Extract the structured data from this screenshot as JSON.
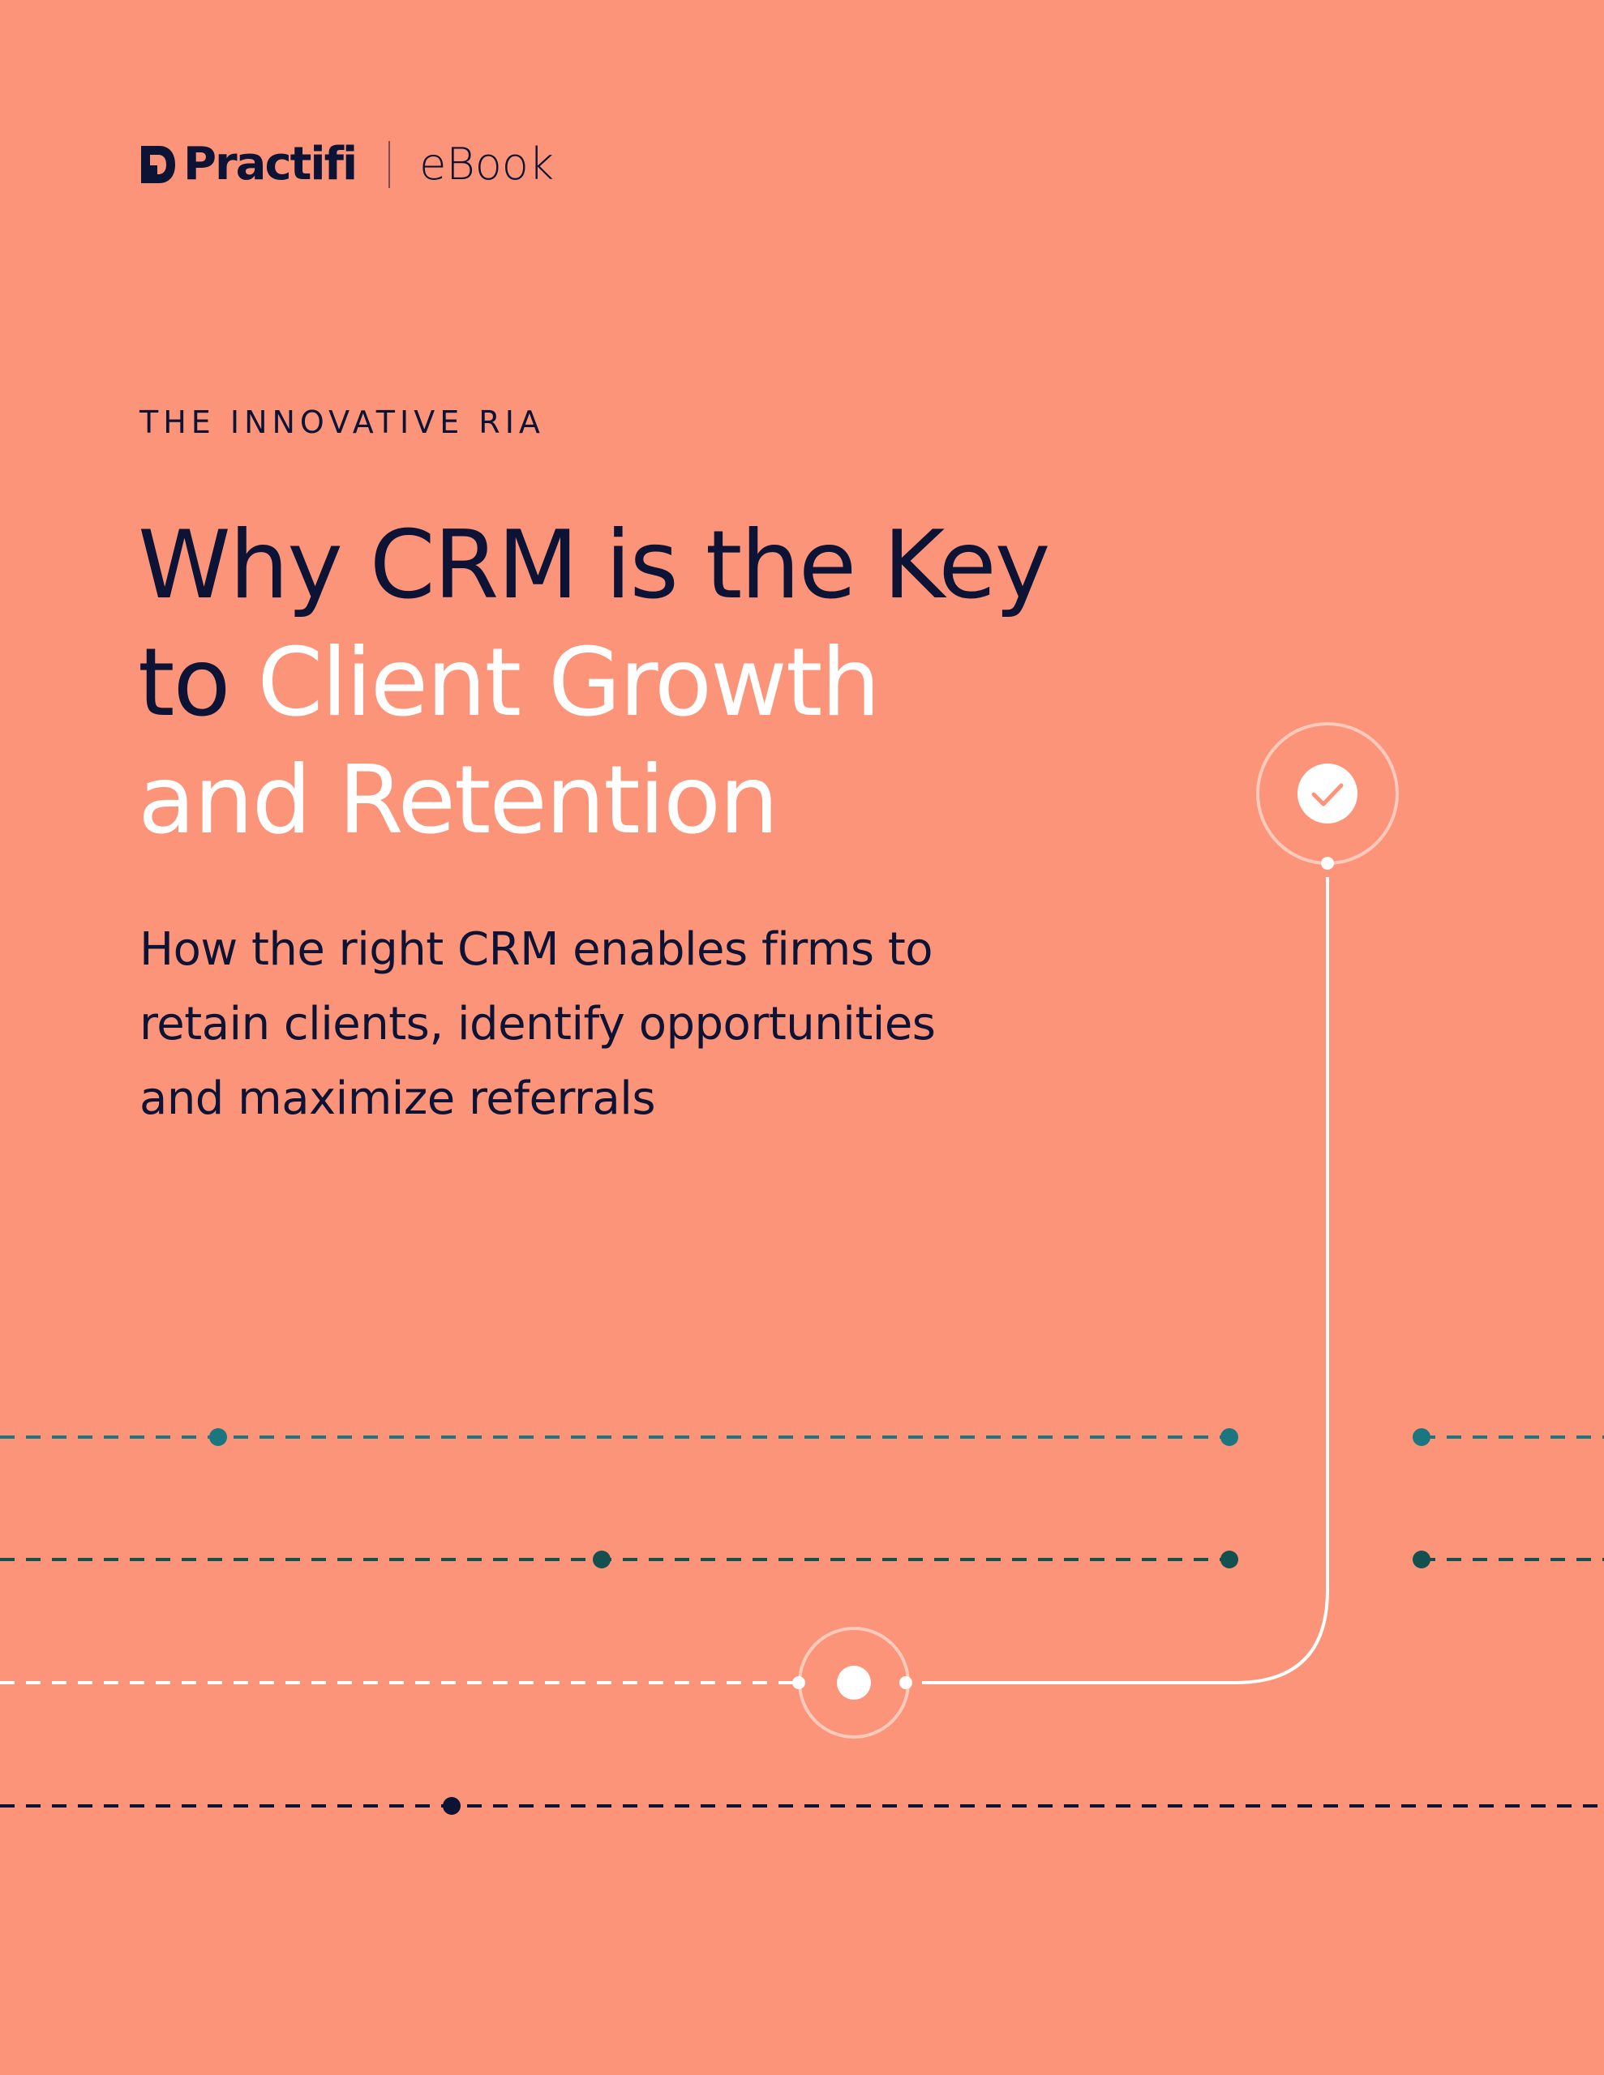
{
  "colors": {
    "background": "#FC9479",
    "navy": "#0D1335",
    "white": "#FFFFFF",
    "teal": "#1C7680",
    "dark_teal": "#14504F",
    "accent_check": "#FC9479"
  },
  "header": {
    "logo_text": "Practifi",
    "doc_type": "eBook"
  },
  "cover": {
    "eyebrow": "THE INNOVATIVE RIA",
    "title": {
      "line1": "Why CRM is the Key",
      "line2_prefix": "to ",
      "line2_highlight": "Client Growth",
      "line3_highlight": "and Retention"
    },
    "subtitle": {
      "line1": "How the right CRM enables firms to",
      "line2": "retain clients, identify opportunities",
      "line3": "and maximize referrals"
    }
  },
  "icons": {
    "logo": "practifi-logo-icon",
    "check": "check-icon",
    "node": "target-node-icon"
  }
}
